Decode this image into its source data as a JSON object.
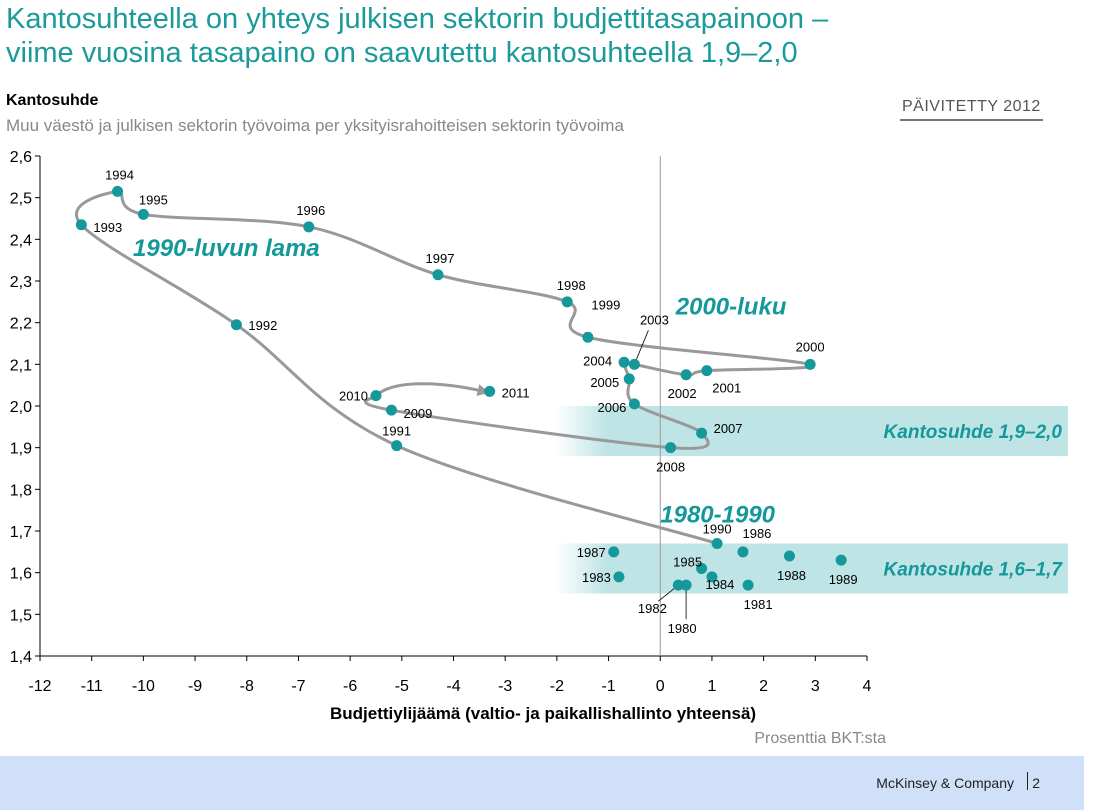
{
  "title": {
    "line1": "Kantosuhteella on yhteys julkisen sektorin budjettitasapainoon –",
    "line2": "viime vuosina tasapaino on saavutettu kantosuhteella 1,9–2,0"
  },
  "badge": "PÄIVITETTY 2012",
  "footer": {
    "company": "McKinsey & Company",
    "page": "2"
  },
  "chart_data": {
    "type": "scatter",
    "title": "Kantosuhde",
    "subtitle": "Muu väestö ja julkisen sektorin työvoima per yksityisrahoitteisen sektorin työvoima",
    "xlabel": "Budjettiylijäämä (valtio- ja paikallishallinto yhteensä)",
    "xunit": "Prosenttia BKT:sta",
    "xlim": [
      -12,
      4
    ],
    "ylim": [
      1.4,
      2.6
    ],
    "xticks": [
      "-12",
      "-11",
      "-10",
      "-9",
      "-8",
      "-7",
      "-6",
      "-5",
      "-4",
      "-3",
      "-2",
      "-1",
      "0",
      "1",
      "2",
      "3",
      "4"
    ],
    "yticks": [
      "1,4",
      "1,5",
      "1,6",
      "1,7",
      "1,8",
      "1,9",
      "2,0",
      "2,1",
      "2,2",
      "2,3",
      "2,4",
      "2,5",
      "2,6"
    ],
    "colors": {
      "point": "#14989a",
      "path": "#999999",
      "band": "#bfe4e5",
      "label": "#14989a"
    },
    "points": [
      {
        "year": "1980",
        "x": 0.5,
        "y": 1.57
      },
      {
        "year": "1981",
        "x": 1.7,
        "y": 1.57
      },
      {
        "year": "1982",
        "x": 0.35,
        "y": 1.57
      },
      {
        "year": "1983",
        "x": -0.8,
        "y": 1.59
      },
      {
        "year": "1984",
        "x": 1.0,
        "y": 1.59
      },
      {
        "year": "1985",
        "x": 0.8,
        "y": 1.61
      },
      {
        "year": "1986",
        "x": 1.6,
        "y": 1.65
      },
      {
        "year": "1987",
        "x": -0.9,
        "y": 1.65
      },
      {
        "year": "1988",
        "x": 2.5,
        "y": 1.64
      },
      {
        "year": "1989",
        "x": 3.5,
        "y": 1.63
      },
      {
        "year": "1990",
        "x": 1.1,
        "y": 1.67
      },
      {
        "year": "1991",
        "x": -5.1,
        "y": 1.905
      },
      {
        "year": "1992",
        "x": -8.2,
        "y": 2.195
      },
      {
        "year": "1993",
        "x": -11.2,
        "y": 2.435
      },
      {
        "year": "1994",
        "x": -10.5,
        "y": 2.515
      },
      {
        "year": "1995",
        "x": -10.0,
        "y": 2.46
      },
      {
        "year": "1996",
        "x": -6.8,
        "y": 2.43
      },
      {
        "year": "1997",
        "x": -4.3,
        "y": 2.315
      },
      {
        "year": "1998",
        "x": -1.8,
        "y": 2.25
      },
      {
        "year": "1999",
        "x": -1.4,
        "y": 2.165
      },
      {
        "year": "2000",
        "x": 2.9,
        "y": 2.1
      },
      {
        "year": "2001",
        "x": 0.9,
        "y": 2.085
      },
      {
        "year": "2002",
        "x": 0.5,
        "y": 2.075
      },
      {
        "year": "2003",
        "x": -0.5,
        "y": 2.1
      },
      {
        "year": "2004",
        "x": -0.7,
        "y": 2.105
      },
      {
        "year": "2005",
        "x": -0.6,
        "y": 2.065
      },
      {
        "year": "2006",
        "x": -0.5,
        "y": 2.005
      },
      {
        "year": "2007",
        "x": 0.8,
        "y": 1.935
      },
      {
        "year": "2008",
        "x": 0.2,
        "y": 1.9
      },
      {
        "year": "2009",
        "x": -5.2,
        "y": 1.99
      },
      {
        "year": "2010",
        "x": -5.5,
        "y": 2.025
      },
      {
        "year": "2011",
        "x": -3.3,
        "y": 2.035
      }
    ],
    "bands": [
      {
        "label": "Kantosuhde 1,9–2,0",
        "y_from": 1.88,
        "y_to": 2.0
      },
      {
        "label": "Kantosuhde 1,6–1,7",
        "y_from": 1.55,
        "y_to": 1.67
      }
    ],
    "annotations": [
      {
        "text": "1990-luvun lama",
        "x": -10.2,
        "y": 2.36
      },
      {
        "text": "2000-luku",
        "x": 0.3,
        "y": 2.22
      },
      {
        "text": "1980-1990",
        "x": 0.0,
        "y": 1.72
      }
    ]
  }
}
